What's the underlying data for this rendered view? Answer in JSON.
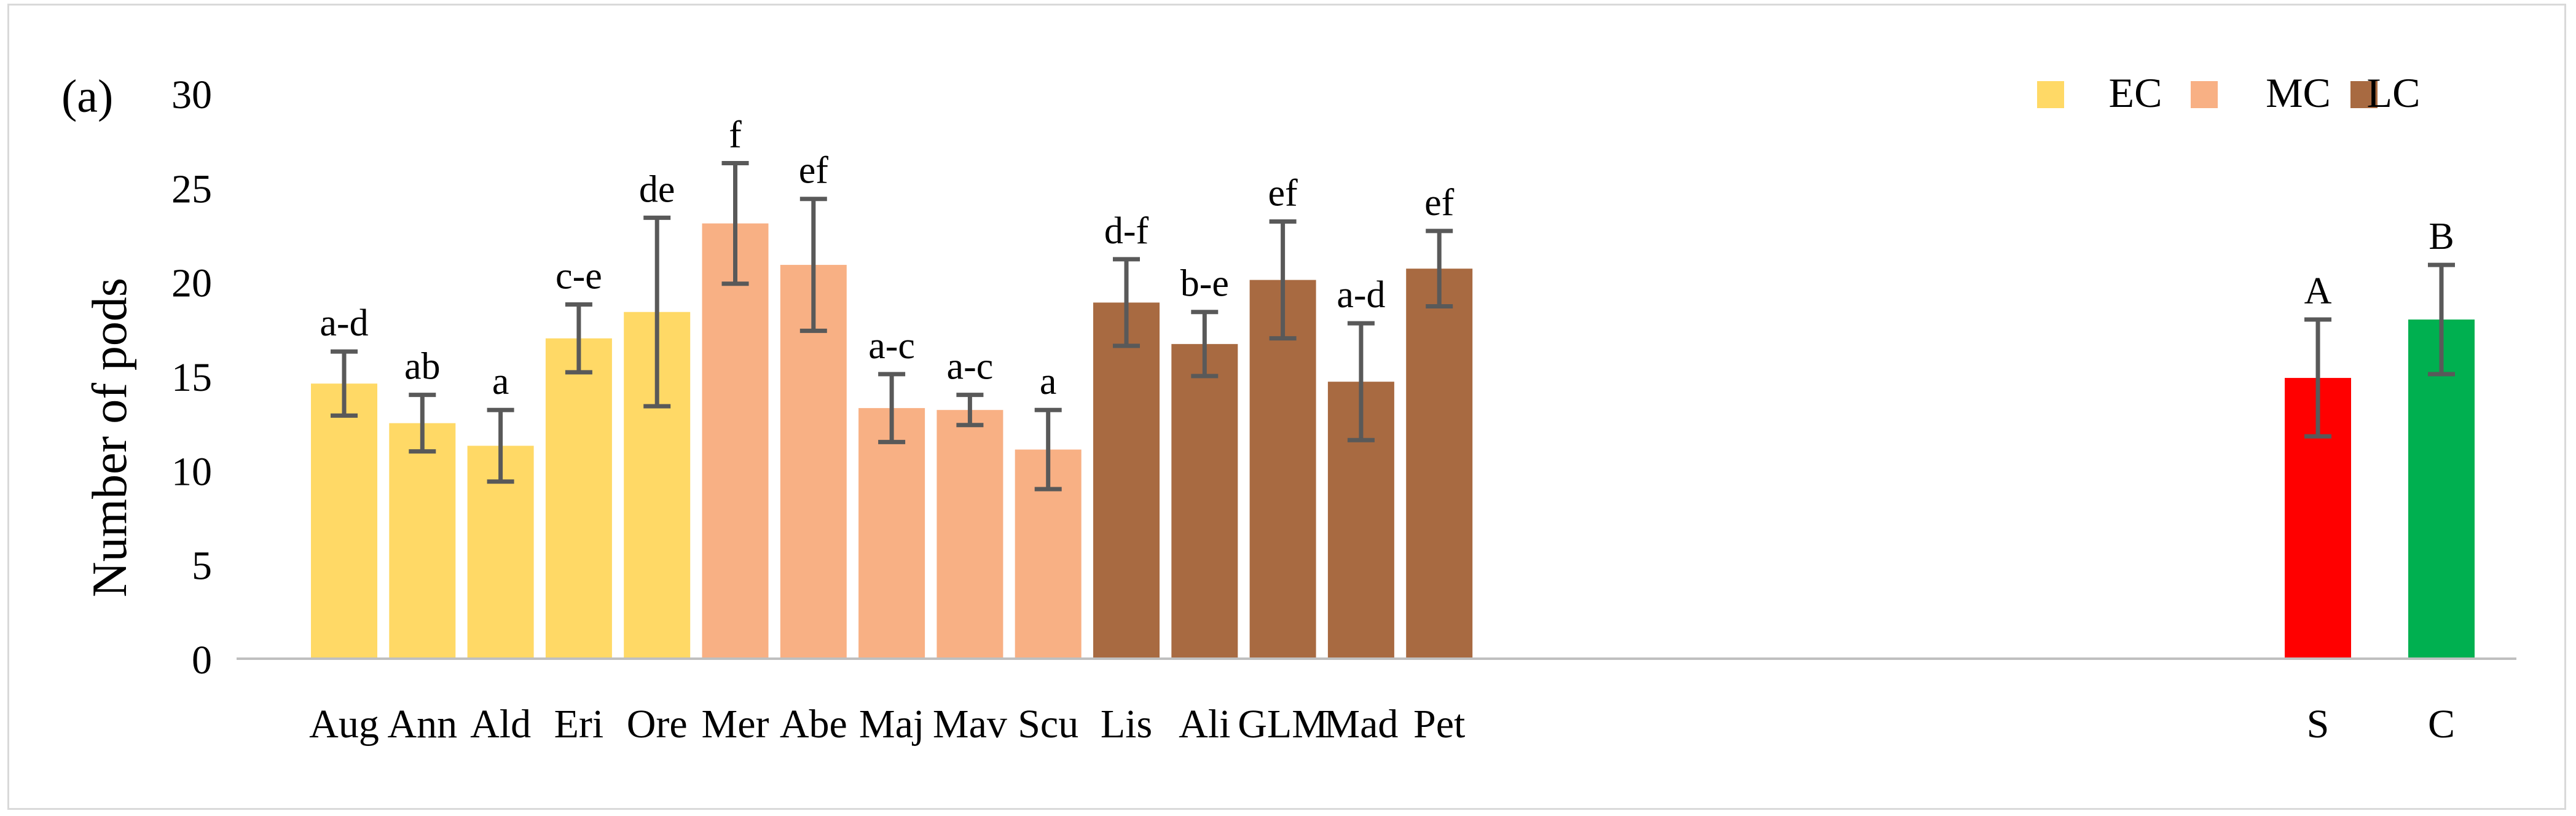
{
  "chart_data": {
    "type": "bar",
    "panel_label": "(a)",
    "ylabel": "Number of pods",
    "xlabel": "",
    "ylim": [
      0,
      30
    ],
    "yticks": [
      0,
      5,
      10,
      15,
      20,
      25,
      30
    ],
    "grid": false,
    "legend": {
      "placement": "top-right",
      "items": [
        {
          "label": "EC",
          "color": "#FFD966"
        },
        {
          "label": "MC",
          "color": "#F8B084"
        },
        {
          "label": "LC",
          "color": "#A86A41"
        }
      ]
    },
    "categories": [
      "Aug",
      "Ann",
      "Ald",
      "Eri",
      "Ore",
      "Mer",
      "Abe",
      "Maj",
      "Mav",
      "Scu",
      "Lis",
      "Ali",
      "GLM",
      "Mad",
      "Pet",
      "S",
      "C"
    ],
    "values": [
      14.6,
      12.5,
      11.3,
      17.0,
      18.4,
      23.1,
      20.9,
      13.3,
      13.2,
      11.1,
      18.9,
      16.7,
      20.1,
      14.7,
      20.7,
      14.9,
      18.0
    ],
    "error": [
      1.7,
      1.5,
      1.9,
      1.8,
      5.0,
      3.2,
      3.5,
      1.8,
      0.8,
      2.1,
      2.3,
      1.7,
      3.1,
      3.1,
      2.0,
      3.1,
      2.9
    ],
    "significance": [
      "a-d",
      "ab",
      "a",
      "c-e",
      "de",
      "f",
      "ef",
      "a-c",
      "a-c",
      "a",
      "d-f",
      "b-e",
      "ef",
      "a-d",
      "ef",
      "A",
      "B"
    ],
    "group_colors": [
      "#FFD966",
      "#FFD966",
      "#FFD966",
      "#FFD966",
      "#FFD966",
      "#F8B084",
      "#F8B084",
      "#F8B084",
      "#F8B084",
      "#F8B084",
      "#A86A41",
      "#A86A41",
      "#A86A41",
      "#A86A41",
      "#A86A41",
      "#FF0000",
      "#00B050"
    ],
    "error_bar_color": "#595959",
    "axis_color": "#bfbfbf"
  }
}
